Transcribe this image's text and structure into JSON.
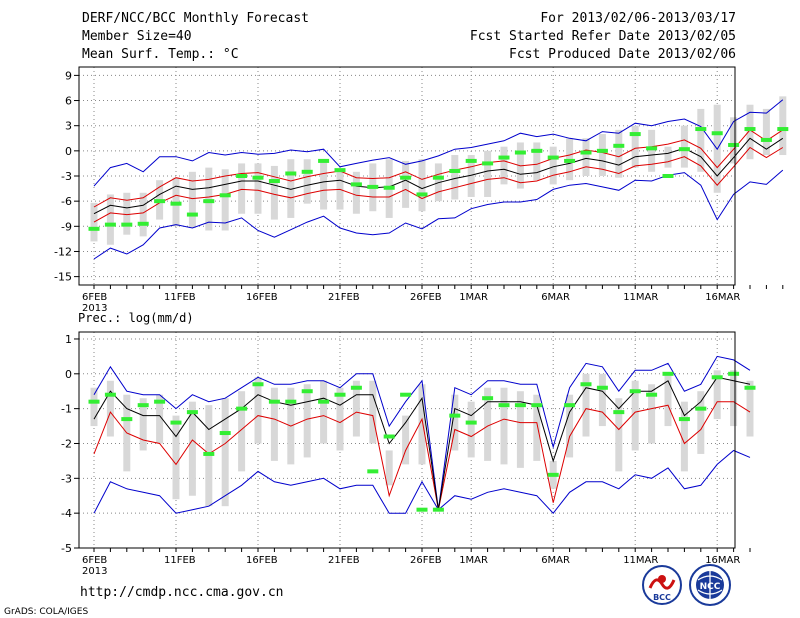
{
  "header": {
    "title": "DERF/NCC/BCC Monthly Forecast",
    "member_size": "Member Size=40",
    "variable": "Mean Surf. Temp.: °C",
    "period": "For 2013/02/06-2013/03/17",
    "started": "Fcst Started Refer Date 2013/02/05",
    "produced": "Fcst Produced Date 2013/02/06"
  },
  "footer": {
    "url": "http://cmdp.ncc.cma.gov.cn",
    "grads": "GrADS: COLA/IGES",
    "logo_left": "BCC",
    "logo_right": "NCC"
  },
  "colors": {
    "frame": "#000000",
    "grid": "#888888",
    "box": "#d8d8d8",
    "median": "#33ee33",
    "mean": "#000000",
    "lower": "#dd0000",
    "envelope": "#0000cc"
  },
  "chart_data": [
    {
      "type": "box-plume",
      "title": "Mean Surf. Temp.: °C",
      "x_tick_labels": [
        "6FEB",
        "11FEB",
        "16FEB",
        "21FEB",
        "26FEB",
        "1MAR",
        "6MAR",
        "11MAR",
        "16MAR"
      ],
      "x_tick_index": [
        0,
        5,
        10,
        15,
        20,
        23,
        28,
        33,
        38
      ],
      "year_label": "2013",
      "ylim": [
        -16,
        10
      ],
      "yticks": [
        -15,
        -12,
        -9,
        -6,
        -3,
        0,
        3,
        6,
        9
      ],
      "series": [
        {
          "name": "mean",
          "values": [
            -7.5,
            -6.5,
            -6.8,
            -6.5,
            -5.2,
            -4.2,
            -4.6,
            -4.4,
            -4.0,
            -3.6,
            -3.6,
            -4.1,
            -4.6,
            -4.1,
            -3.7,
            -3.5,
            -4.2,
            -4.4,
            -4.3,
            -3.5,
            -4.5,
            -3.8,
            -3.3,
            -2.9,
            -2.4,
            -2.2,
            -2.8,
            -2.6,
            -1.9,
            -1.5,
            -0.9,
            -1.2,
            -1.7,
            -0.7,
            -0.5,
            -0.3,
            0.3,
            -0.7,
            -3.0,
            -0.8,
            1.5,
            0.2,
            1.5
          ]
        },
        {
          "name": "lower",
          "values": [
            -8.5,
            -7.4,
            -7.6,
            -7.4,
            -6.2,
            -5.3,
            -5.7,
            -5.5,
            -5.2,
            -4.6,
            -4.7,
            -5.2,
            -5.6,
            -5.1,
            -4.7,
            -4.6,
            -5.3,
            -5.5,
            -5.5,
            -4.6,
            -5.7,
            -4.9,
            -4.4,
            -3.9,
            -3.4,
            -3.2,
            -3.8,
            -3.6,
            -2.9,
            -2.5,
            -1.9,
            -2.2,
            -2.7,
            -1.8,
            -1.6,
            -1.3,
            -0.7,
            -1.8,
            -4.1,
            -1.9,
            0.4,
            -0.8,
            0.4
          ]
        },
        {
          "name": "upper",
          "values": [
            -6.7,
            -5.6,
            -5.9,
            -5.6,
            -4.3,
            -3.2,
            -3.6,
            -3.4,
            -3.0,
            -2.7,
            -2.6,
            -3.1,
            -3.6,
            -3.1,
            -2.7,
            -2.4,
            -3.2,
            -3.3,
            -3.2,
            -2.5,
            -3.4,
            -2.8,
            -2.3,
            -1.9,
            -1.4,
            -1.2,
            -1.8,
            -1.6,
            -0.9,
            -0.5,
            0.1,
            -0.2,
            -0.7,
            0.3,
            0.5,
            0.8,
            1.3,
            0.3,
            -2.0,
            0.2,
            2.5,
            1.2,
            2.5
          ]
        },
        {
          "name": "max",
          "values": [
            -4.2,
            -2.0,
            -1.5,
            -2.5,
            -0.7,
            -0.7,
            -1.2,
            -0.2,
            -0.5,
            -0.2,
            -0.4,
            -0.3,
            0.1,
            -0.1,
            0.2,
            -1.9,
            -1.5,
            -1.1,
            -0.8,
            -1.6,
            -1.2,
            -0.6,
            0.2,
            0.4,
            0.8,
            1.2,
            2.1,
            1.7,
            2.0,
            1.5,
            1.2,
            2.3,
            2.1,
            3.3,
            3.0,
            3.5,
            3.8,
            2.9,
            0.2,
            3.5,
            4.6,
            4.5,
            6.1
          ]
        },
        {
          "name": "min",
          "values": [
            -12.9,
            -11.6,
            -12.3,
            -11.2,
            -9.2,
            -8.8,
            -9.2,
            -8.5,
            -8.6,
            -8.0,
            -9.5,
            -10.3,
            -9.4,
            -8.5,
            -7.8,
            -9.2,
            -9.8,
            -10.0,
            -9.8,
            -8.6,
            -9.3,
            -8.1,
            -8.0,
            -6.9,
            -6.4,
            -6.1,
            -6.1,
            -5.8,
            -4.6,
            -4.1,
            -3.9,
            -4.3,
            -4.7,
            -3.5,
            -3.6,
            -2.9,
            -2.6,
            -4.1,
            -8.2,
            -5.2,
            -3.7,
            -4.0,
            -2.3
          ]
        },
        {
          "name": "median",
          "values": [
            -9.3,
            -8.8,
            -8.8,
            -8.7,
            -6.0,
            -6.3,
            -7.6,
            -6.0,
            -5.3,
            -3.0,
            -3.2,
            -3.6,
            -2.7,
            -2.5,
            -1.2,
            -2.3,
            -4.0,
            -4.3,
            -4.4,
            -3.2,
            -5.2,
            -3.2,
            -2.4,
            -1.2,
            -1.5,
            -0.8,
            -0.2,
            0.0,
            -0.8,
            -1.2,
            -0.2,
            0.0,
            0.6,
            2.0,
            0.3,
            -3.0,
            0.2,
            2.6,
            2.1,
            0.7,
            2.6,
            1.3,
            2.6
          ]
        },
        {
          "name": "box_low",
          "values": [
            -10.8,
            -11.2,
            -10.0,
            -10.2,
            -8.2,
            -9.0,
            -9.2,
            -9.5,
            -9.5,
            -7.5,
            -7.5,
            -8.2,
            -8.0,
            -6.3,
            -7.0,
            -7.0,
            -7.5,
            -7.2,
            -8.0,
            -6.8,
            -7.2,
            -6.0,
            -5.8,
            -5.5,
            -5.5,
            -4.0,
            -4.5,
            -3.5,
            -4.0,
            -3.5,
            -3.0,
            -3.0,
            -3.2,
            -2.0,
            -2.5,
            -2.0,
            -2.0,
            -2.5,
            -5.0,
            -1.5,
            -1.0,
            -0.5,
            -0.5
          ]
        },
        {
          "name": "box_high",
          "values": [
            -6.2,
            -5.2,
            -5.0,
            -5.0,
            -3.5,
            -3.2,
            -2.5,
            -2.0,
            -2.2,
            -1.5,
            -1.5,
            -1.8,
            -1.0,
            -1.0,
            -1.0,
            -2.5,
            -2.5,
            -1.5,
            -1.0,
            -1.2,
            -1.0,
            -1.5,
            -0.5,
            -0.5,
            0.0,
            0.5,
            1.0,
            1.0,
            0.5,
            1.5,
            1.5,
            2.0,
            2.5,
            3.0,
            2.5,
            0.5,
            3.0,
            5.0,
            5.5,
            4.0,
            5.5,
            5.0,
            6.5
          ]
        }
      ]
    },
    {
      "type": "box-plume",
      "title": "Prec.: log(mm/d)",
      "x_tick_labels": [
        "6FEB",
        "11FEB",
        "16FEB",
        "21FEB",
        "26FEB",
        "1MAR",
        "6MAR",
        "11MAR",
        "16MAR"
      ],
      "x_tick_index": [
        0,
        5,
        10,
        15,
        20,
        23,
        28,
        33,
        38
      ],
      "year_label": "2013",
      "ylim": [
        -5,
        1.2
      ],
      "yticks": [
        -5,
        -4,
        -3,
        -2,
        -1,
        0,
        1
      ],
      "series": [
        {
          "name": "mean",
          "values": [
            -1.3,
            -0.5,
            -1.0,
            -1.2,
            -1.2,
            -1.8,
            -1.1,
            -1.6,
            -1.3,
            -1.0,
            -0.6,
            -0.8,
            -0.9,
            -0.8,
            -0.7,
            -0.9,
            -0.6,
            -0.6,
            -2.0,
            -1.4,
            -0.7,
            -3.9,
            -1.0,
            -1.2,
            -0.8,
            -0.8,
            -0.8,
            -0.9,
            -2.5,
            -1.1,
            -0.4,
            -0.5,
            -1.0,
            -0.5,
            -0.5,
            -0.2,
            -1.2,
            -0.8,
            -0.1,
            -0.2,
            -0.3
          ]
        },
        {
          "name": "lower",
          "values": [
            -2.3,
            -1.1,
            -1.7,
            -1.9,
            -2.0,
            -2.6,
            -1.9,
            -2.3,
            -2.0,
            -1.6,
            -1.2,
            -1.3,
            -1.5,
            -1.3,
            -1.2,
            -1.4,
            -1.1,
            -1.2,
            -3.5,
            -2.2,
            -1.3,
            -3.9,
            -1.6,
            -1.8,
            -1.5,
            -1.3,
            -1.4,
            -1.4,
            -3.7,
            -1.8,
            -1.0,
            -1.1,
            -1.6,
            -1.1,
            -1.0,
            -0.9,
            -2.0,
            -1.6,
            -0.8,
            -0.8,
            -1.1
          ]
        },
        {
          "name": "max",
          "values": [
            -0.6,
            0.2,
            -0.5,
            -0.6,
            -0.6,
            -1.0,
            -0.6,
            -0.8,
            -0.7,
            -0.4,
            -0.1,
            -0.3,
            -0.3,
            -0.2,
            -0.2,
            -0.4,
            0.0,
            0.0,
            -1.5,
            -0.8,
            -0.2,
            -3.9,
            -0.4,
            -0.6,
            -0.2,
            -0.2,
            -0.3,
            -0.3,
            -2.1,
            -0.4,
            0.3,
            0.2,
            -0.5,
            0.1,
            0.1,
            0.3,
            -0.5,
            -0.3,
            0.5,
            0.4,
            0.1
          ]
        },
        {
          "name": "min",
          "values": [
            -4.0,
            -3.1,
            -3.3,
            -3.4,
            -3.5,
            -4.0,
            -3.9,
            -3.8,
            -3.5,
            -3.2,
            -2.8,
            -3.1,
            -3.2,
            -3.1,
            -3.0,
            -3.3,
            -3.2,
            -3.2,
            -4.0,
            -4.0,
            -3.1,
            -3.9,
            -3.5,
            -3.6,
            -3.4,
            -3.3,
            -3.4,
            -3.5,
            -4.0,
            -3.4,
            -3.1,
            -3.1,
            -3.3,
            -2.9,
            -3.0,
            -2.7,
            -3.3,
            -3.2,
            -2.6,
            -2.2,
            -2.4
          ]
        },
        {
          "name": "median",
          "values": [
            -0.8,
            -0.6,
            -1.3,
            -0.9,
            -0.8,
            -1.4,
            -1.1,
            -2.3,
            -1.7,
            -1.0,
            -0.3,
            -0.8,
            -0.8,
            -0.5,
            -0.8,
            -0.6,
            -0.4,
            -2.8,
            -1.8,
            -0.6,
            -3.9,
            -3.9,
            -1.2,
            -1.4,
            -0.7,
            -0.9,
            -0.9,
            -0.9,
            -2.9,
            -0.9,
            -0.3,
            -0.4,
            -1.1,
            -0.5,
            -0.6,
            0.0,
            -1.3,
            -1.0,
            -0.1,
            0.0,
            -0.4
          ]
        },
        {
          "name": "box_low",
          "values": [
            -1.5,
            -1.8,
            -2.8,
            -2.2,
            -2.0,
            -3.6,
            -3.5,
            -3.8,
            -3.8,
            -2.8,
            -2.0,
            -2.5,
            -2.6,
            -2.4,
            -2.0,
            -2.2,
            -1.8,
            -2.0,
            -3.2,
            -2.6,
            -2.6,
            -3.9,
            -2.2,
            -2.4,
            -2.5,
            -2.6,
            -2.7,
            -2.5,
            -3.3,
            -2.4,
            -1.8,
            -1.5,
            -2.8,
            -2.2,
            -2.0,
            -1.5,
            -2.8,
            -2.3,
            -1.3,
            -1.5,
            -1.8
          ]
        },
        {
          "name": "box_high",
          "values": [
            -0.4,
            -0.2,
            -0.6,
            -0.7,
            -0.6,
            -1.2,
            -0.8,
            -0.9,
            -0.7,
            -0.5,
            -0.1,
            -0.4,
            -0.4,
            -0.3,
            -0.2,
            -0.4,
            -0.2,
            -0.2,
            -2.2,
            -1.2,
            -0.3,
            -3.9,
            -0.6,
            -0.8,
            -0.4,
            -0.4,
            -0.5,
            -0.6,
            -2.5,
            -0.6,
            0.0,
            0.0,
            -0.7,
            -0.2,
            -0.3,
            0.0,
            -0.8,
            -0.5,
            0.1,
            0.1,
            -0.2
          ]
        }
      ]
    }
  ]
}
